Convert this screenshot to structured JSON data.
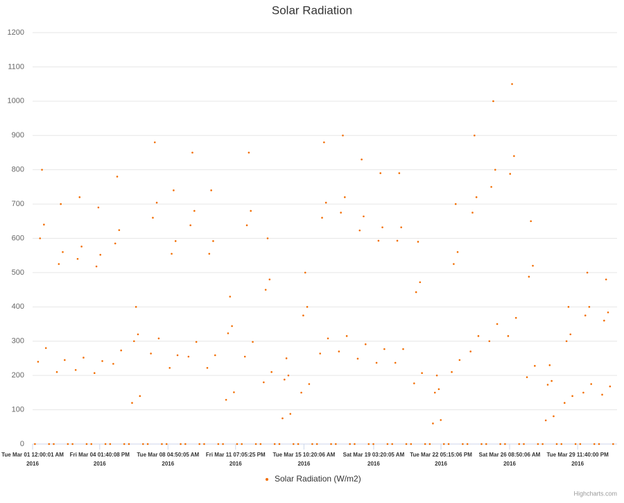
{
  "chart_data": {
    "type": "scatter",
    "title": "Solar Radiation",
    "series": [
      {
        "name": "Solar Radiation (W/m2)",
        "color": "#f26d00",
        "x": [
          "2016-03-01T03:00",
          "2016-03-01T07:00",
          "2016-03-01T09:30",
          "2016-03-01T12:00",
          "2016-03-01T14:30",
          "2016-03-01T17:00",
          "2016-03-01T21:00",
          "2016-03-02T03:00",
          "2016-03-02T07:00",
          "2016-03-02T09:30",
          "2016-03-02T12:00",
          "2016-03-02T14:30",
          "2016-03-02T17:00",
          "2016-03-02T21:00",
          "2016-03-03T03:00",
          "2016-03-03T07:00",
          "2016-03-03T09:30",
          "2016-03-03T12:00",
          "2016-03-03T14:30",
          "2016-03-03T17:00",
          "2016-03-03T21:00",
          "2016-03-04T03:00",
          "2016-03-04T07:00",
          "2016-03-04T09:30",
          "2016-03-04T12:00",
          "2016-03-04T14:30",
          "2016-03-04T17:00",
          "2016-03-04T21:00",
          "2016-03-05T03:00",
          "2016-03-05T07:00",
          "2016-03-05T09:30",
          "2016-03-05T12:00",
          "2016-03-05T14:30",
          "2016-03-05T17:00",
          "2016-03-05T21:00",
          "2016-03-06T03:00",
          "2016-03-06T07:00",
          "2016-03-06T09:30",
          "2016-03-06T12:00",
          "2016-03-06T14:30",
          "2016-03-06T17:00",
          "2016-03-06T21:00",
          "2016-03-07T03:00",
          "2016-03-07T07:00",
          "2016-03-07T09:30",
          "2016-03-07T12:00",
          "2016-03-07T14:30",
          "2016-03-07T17:00",
          "2016-03-07T21:00",
          "2016-03-08T03:00",
          "2016-03-08T07:00",
          "2016-03-08T09:30",
          "2016-03-08T12:00",
          "2016-03-08T14:30",
          "2016-03-08T17:00",
          "2016-03-08T21:00",
          "2016-03-09T03:00",
          "2016-03-09T07:00",
          "2016-03-09T09:30",
          "2016-03-09T12:00",
          "2016-03-09T14:30",
          "2016-03-09T17:00",
          "2016-03-09T21:00",
          "2016-03-10T03:00",
          "2016-03-10T07:00",
          "2016-03-10T09:30",
          "2016-03-10T12:00",
          "2016-03-10T14:30",
          "2016-03-10T17:00",
          "2016-03-10T21:00",
          "2016-03-11T03:00",
          "2016-03-11T07:00",
          "2016-03-11T09:30",
          "2016-03-11T12:00",
          "2016-03-11T14:30",
          "2016-03-11T17:00",
          "2016-03-11T21:00",
          "2016-03-12T03:00",
          "2016-03-12T07:00",
          "2016-03-12T09:30",
          "2016-03-12T12:00",
          "2016-03-12T14:30",
          "2016-03-12T17:00",
          "2016-03-12T21:00",
          "2016-03-13T03:00",
          "2016-03-13T07:00",
          "2016-03-13T09:30",
          "2016-03-13T12:00",
          "2016-03-13T14:30",
          "2016-03-13T17:00",
          "2016-03-13T21:00",
          "2016-03-14T03:00",
          "2016-03-14T07:00",
          "2016-03-14T09:30",
          "2016-03-14T12:00",
          "2016-03-14T14:30",
          "2016-03-14T17:00",
          "2016-03-14T21:00",
          "2016-03-15T03:00",
          "2016-03-15T07:00",
          "2016-03-15T09:30",
          "2016-03-15T12:00",
          "2016-03-15T14:30",
          "2016-03-15T17:00",
          "2016-03-15T21:00",
          "2016-03-16T03:00",
          "2016-03-16T07:00",
          "2016-03-16T09:30",
          "2016-03-16T12:00",
          "2016-03-16T14:30",
          "2016-03-16T17:00",
          "2016-03-16T21:00",
          "2016-03-17T03:00",
          "2016-03-17T07:00",
          "2016-03-17T09:30",
          "2016-03-17T12:00",
          "2016-03-17T14:30",
          "2016-03-17T17:00",
          "2016-03-17T21:00",
          "2016-03-18T03:00",
          "2016-03-18T07:00",
          "2016-03-18T09:30",
          "2016-03-18T12:00",
          "2016-03-18T14:30",
          "2016-03-18T17:00",
          "2016-03-18T21:00",
          "2016-03-19T03:00",
          "2016-03-19T07:00",
          "2016-03-19T09:30",
          "2016-03-19T12:00",
          "2016-03-19T14:30",
          "2016-03-19T17:00",
          "2016-03-19T21:00",
          "2016-03-20T03:00",
          "2016-03-20T07:00",
          "2016-03-20T09:30",
          "2016-03-20T12:00",
          "2016-03-20T14:30",
          "2016-03-20T17:00",
          "2016-03-20T21:00",
          "2016-03-21T03:00",
          "2016-03-21T07:00",
          "2016-03-21T09:30",
          "2016-03-21T12:00",
          "2016-03-21T14:30",
          "2016-03-21T17:00",
          "2016-03-21T21:00",
          "2016-03-22T03:00",
          "2016-03-22T07:00",
          "2016-03-22T09:30",
          "2016-03-22T12:00",
          "2016-03-22T14:30",
          "2016-03-22T17:00",
          "2016-03-22T21:00",
          "2016-03-23T03:00",
          "2016-03-23T07:00",
          "2016-03-23T09:30",
          "2016-03-23T12:00",
          "2016-03-23T14:30",
          "2016-03-23T17:00",
          "2016-03-23T21:00",
          "2016-03-24T03:00",
          "2016-03-24T07:00",
          "2016-03-24T09:30",
          "2016-03-24T12:00",
          "2016-03-24T14:30",
          "2016-03-24T17:00",
          "2016-03-24T21:00",
          "2016-03-25T03:00",
          "2016-03-25T07:00",
          "2016-03-25T09:30",
          "2016-03-25T12:00",
          "2016-03-25T14:30",
          "2016-03-25T17:00",
          "2016-03-25T21:00",
          "2016-03-26T03:00",
          "2016-03-26T07:00",
          "2016-03-26T09:30",
          "2016-03-26T12:00",
          "2016-03-26T14:30",
          "2016-03-26T17:00",
          "2016-03-26T21:00",
          "2016-03-27T03:00",
          "2016-03-27T07:00",
          "2016-03-27T09:30",
          "2016-03-27T12:00",
          "2016-03-27T14:30",
          "2016-03-27T17:00",
          "2016-03-27T21:00",
          "2016-03-28T03:00",
          "2016-03-28T07:00",
          "2016-03-28T09:30",
          "2016-03-28T12:00",
          "2016-03-28T14:30",
          "2016-03-28T17:00",
          "2016-03-28T21:00",
          "2016-03-29T03:00",
          "2016-03-29T07:00",
          "2016-03-29T09:30",
          "2016-03-29T12:00",
          "2016-03-29T14:30",
          "2016-03-29T17:00",
          "2016-03-29T21:00",
          "2016-03-30T03:00",
          "2016-03-30T07:00",
          "2016-03-30T09:30",
          "2016-03-30T12:00",
          "2016-03-30T14:30",
          "2016-03-30T17:00",
          "2016-03-30T21:00",
          "2016-03-31T03:00",
          "2016-03-31T07:00",
          "2016-03-31T09:30",
          "2016-03-31T12:00",
          "2016-03-31T14:30",
          "2016-03-31T17:00",
          "2016-03-31T21:00"
        ],
        "values": [
          0,
          240,
          600,
          800,
          640,
          280,
          0,
          0,
          210,
          525,
          700,
          560,
          245,
          0,
          0,
          216,
          540,
          720,
          576,
          252,
          0,
          0,
          207,
          518,
          690,
          552,
          242,
          0,
          0,
          234,
          585,
          780,
          624,
          273,
          0,
          0,
          120,
          300,
          400,
          320,
          140,
          0,
          0,
          264,
          660,
          880,
          704,
          308,
          0,
          0,
          222,
          555,
          740,
          592,
          259,
          0,
          0,
          255,
          638,
          850,
          680,
          298,
          0,
          0,
          222,
          555,
          740,
          592,
          259,
          0,
          0,
          129,
          323,
          430,
          344,
          151,
          0,
          0,
          255,
          638,
          850,
          680,
          298,
          0,
          0,
          180,
          450,
          600,
          480,
          210,
          0,
          0,
          75,
          188,
          250,
          200,
          88,
          0,
          0,
          150,
          375,
          500,
          400,
          175,
          0,
          0,
          264,
          660,
          880,
          704,
          308,
          0,
          0,
          270,
          675,
          900,
          720,
          315,
          0,
          0,
          249,
          623,
          830,
          664,
          291,
          0,
          0,
          237,
          593,
          790,
          632,
          277,
          0,
          0,
          237,
          593,
          790,
          632,
          277,
          0,
          0,
          177,
          443,
          590,
          472,
          207,
          0,
          0,
          60,
          150,
          200,
          160,
          70,
          0,
          0,
          210,
          525,
          700,
          560,
          245,
          0,
          0,
          270,
          675,
          900,
          720,
          315,
          0,
          0,
          300,
          750,
          1000,
          800,
          350,
          0,
          0,
          315,
          788,
          1050,
          840,
          368,
          0,
          0,
          195,
          488,
          650,
          520,
          228,
          0,
          0,
          69,
          173,
          230,
          184,
          81,
          0,
          0,
          120,
          300,
          400,
          320,
          140,
          0,
          0,
          150,
          375,
          500,
          400,
          175,
          0,
          0,
          144,
          360,
          480,
          384,
          168,
          0
        ]
      }
    ],
    "xlim": [
      "2016-03-01T00:00:01",
      "2016-04-01T02:00:00"
    ],
    "xticks": [
      {
        "value": "2016-03-01T00:00:01",
        "label": [
          "Tue Mar 01 12:00:01 AM",
          "2016"
        ]
      },
      {
        "value": "2016-03-04T13:40:08",
        "label": [
          "Fri Mar 04 01:40:08 PM",
          "2016"
        ]
      },
      {
        "value": "2016-03-08T04:50:05",
        "label": [
          "Tue Mar 08 04:50:05 AM",
          "2016"
        ]
      },
      {
        "value": "2016-03-11T19:05:25",
        "label": [
          "Fri Mar 11 07:05:25 PM",
          "2016"
        ]
      },
      {
        "value": "2016-03-15T10:20:06",
        "label": [
          "Tue Mar 15 10:20:06 AM",
          "2016"
        ]
      },
      {
        "value": "2016-03-19T03:20:05",
        "label": [
          "Sat Mar 19 03:20:05 AM",
          "2016"
        ]
      },
      {
        "value": "2016-03-22T17:15:06",
        "label": [
          "Tue Mar 22 05:15:06 PM",
          "2016"
        ]
      },
      {
        "value": "2016-03-26T08:50:06",
        "label": [
          "Sat Mar 26 08:50:06 AM",
          "2016"
        ]
      },
      {
        "value": "2016-03-29T23:40:00",
        "label": [
          "Tue Mar 29 11:40:00 PM",
          "2016"
        ]
      }
    ],
    "ylim": [
      0,
      1200
    ],
    "yticks": [
      0,
      100,
      200,
      300,
      400,
      500,
      600,
      700,
      800,
      900,
      1000,
      1100,
      1200
    ],
    "grid": true,
    "legend": "bottom",
    "credits": "Highcharts.com"
  }
}
